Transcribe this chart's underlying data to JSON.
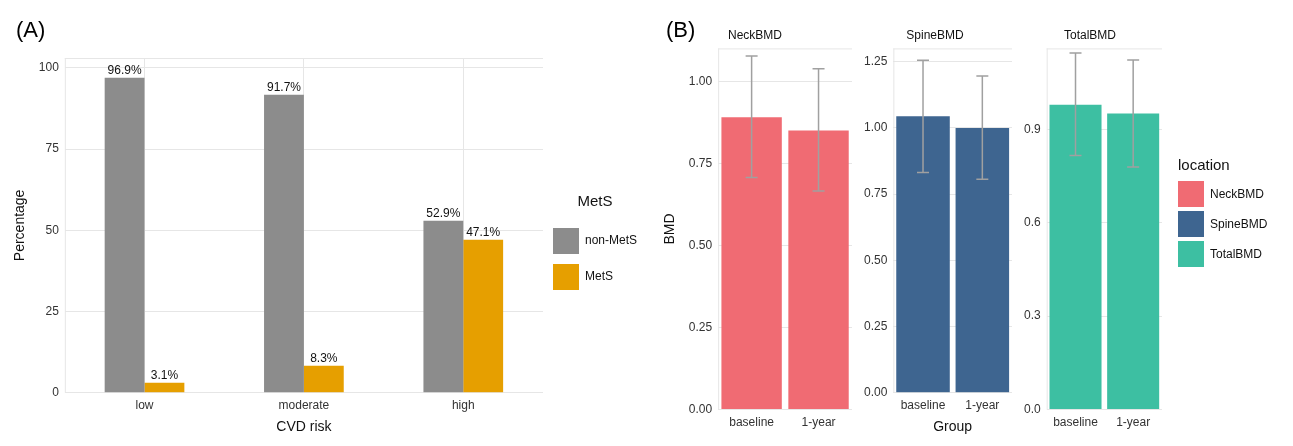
{
  "chart_data": [
    {
      "type": "bar",
      "annotations": [
        "(A)"
      ],
      "xlabel": "CVD risk",
      "ylabel": "Percentage",
      "legend_title": "MetS",
      "legend": "right",
      "grid": true,
      "categories": [
        "low",
        "moderate",
        "high"
      ],
      "ylim": [
        0,
        103
      ],
      "yticks": [
        0,
        25,
        50,
        75,
        100
      ],
      "series": [
        {
          "name": "non-MetS",
          "color": "#8c8c8c",
          "values": [
            96.9,
            91.7,
            52.9
          ],
          "value_labels": [
            "96.9%",
            "91.7%",
            "52.9%"
          ]
        },
        {
          "name": "MetS",
          "color": "#e69f00",
          "values": [
            3.1,
            8.3,
            47.1
          ],
          "value_labels": [
            "3.1%",
            "8.3%",
            "47.1%"
          ]
        }
      ]
    },
    {
      "type": "bar",
      "annotations": [
        "(B)"
      ],
      "title": "NeckBMD",
      "ylabel": "BMD",
      "grid": "y",
      "categories": [
        "baseline",
        "1-year"
      ],
      "ylim": [
        0,
        1.1
      ],
      "yticks": [
        {
          "value": 0,
          "label": "0.00"
        },
        {
          "value": 0.25,
          "label": "0.25"
        },
        {
          "value": 0.5,
          "label": "0.50"
        },
        {
          "value": 0.75,
          "label": "0.75"
        },
        {
          "value": 1,
          "label": "1.00"
        }
      ],
      "series": [
        {
          "name": "NeckBMD",
          "color": "#f06b73",
          "values": [
            0.89,
            0.85
          ],
          "errors": [
            [
              0.707,
              1.077
            ],
            [
              0.666,
              1.038
            ]
          ]
        }
      ]
    },
    {
      "type": "bar",
      "title": "SpineBMD",
      "xlabel": "Group",
      "grid": "y",
      "categories": [
        "baseline",
        "1-year"
      ],
      "ylim": [
        0,
        1.3
      ],
      "yticks": [
        {
          "value": 0,
          "label": "0.00"
        },
        {
          "value": 0.25,
          "label": "0.25"
        },
        {
          "value": 0.5,
          "label": "0.50"
        },
        {
          "value": 0.75,
          "label": "0.75"
        },
        {
          "value": 1,
          "label": "1.00"
        },
        {
          "value": 1.25,
          "label": "1.25"
        }
      ],
      "series": [
        {
          "name": "SpineBMD",
          "color": "#3e6590",
          "values": [
            1.044,
            1.0
          ],
          "errors": [
            [
              0.832,
              1.255
            ],
            [
              0.806,
              1.196
            ]
          ]
        }
      ]
    },
    {
      "type": "bar",
      "title": "TotalBMD",
      "legend_title": "location",
      "legend": "right",
      "grid": "y",
      "categories": [
        "baseline",
        "1-year"
      ],
      "ylim": [
        0,
        1.16
      ],
      "yticks": [
        {
          "value": 0,
          "label": "0.0"
        },
        {
          "value": 0.3,
          "label": "0.3"
        },
        {
          "value": 0.6,
          "label": "0.6"
        },
        {
          "value": 0.9,
          "label": "0.9"
        }
      ],
      "series": [
        {
          "name": "TotalBMD",
          "color": "#3dbfa2",
          "values": [
            0.979,
            0.951
          ],
          "errors": [
            [
              0.816,
              1.145
            ],
            [
              0.779,
              1.123
            ]
          ]
        }
      ]
    }
  ]
}
